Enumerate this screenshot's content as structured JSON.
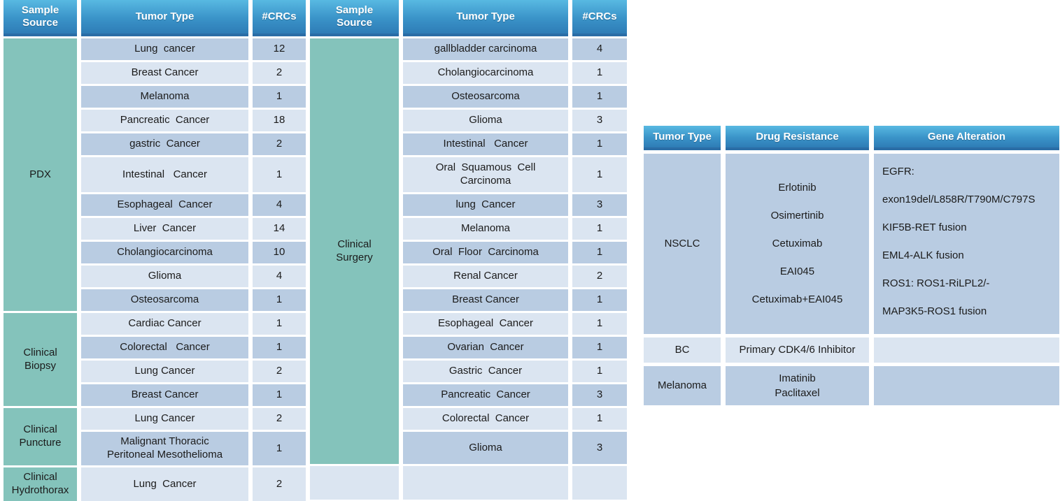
{
  "palette": {
    "header_gradient_top": "#58b9e2",
    "header_gradient_bottom": "#2e7cb6",
    "header_edge": "#2a6da6",
    "group_teal": "#84c3bb",
    "row_dark": "#b9cce2",
    "row_light": "#dbe5f1",
    "text": "#1b1b1b",
    "header_text": "#ffffff"
  },
  "left_table": {
    "header": {
      "source": "Sample Source",
      "tumor": "Tumor Type",
      "crcs": "#CRCs"
    },
    "groups": [
      {
        "label": "PDX",
        "span": 11
      },
      {
        "label": "Clinical\nBiopsy",
        "span": 4
      },
      {
        "label": "Clinical\nPuncture",
        "span": 2
      },
      {
        "label": "Clinical\nHydrothorax",
        "span": 1
      }
    ],
    "rows": [
      {
        "tumor": "Lung  cancer",
        "crcs": "12"
      },
      {
        "tumor": "Breast Cancer",
        "crcs": "2"
      },
      {
        "tumor": "Melanoma",
        "crcs": "1"
      },
      {
        "tumor": "Pancreatic  Cancer",
        "crcs": "18"
      },
      {
        "tumor": "gastric  Cancer",
        "crcs": "2"
      },
      {
        "tumor": "Intestinal   Cancer",
        "crcs": "1"
      },
      {
        "tumor": "Esophageal  Cancer",
        "crcs": "4"
      },
      {
        "tumor": "Liver  Cancer",
        "crcs": "14"
      },
      {
        "tumor": "Cholangiocarcinoma",
        "crcs": "10"
      },
      {
        "tumor": "Glioma",
        "crcs": "4"
      },
      {
        "tumor": "Osteosarcoma",
        "crcs": "1"
      },
      {
        "tumor": "Cardiac Cancer",
        "crcs": "1"
      },
      {
        "tumor": "Colorectal   Cancer",
        "crcs": "1"
      },
      {
        "tumor": "Lung Cancer",
        "crcs": "2"
      },
      {
        "tumor": "Breast Cancer",
        "crcs": "1"
      },
      {
        "tumor": "Lung Cancer",
        "crcs": "2"
      },
      {
        "tumor": "Malignant Thoracic\nPeritoneal Mesothelioma",
        "crcs": "1"
      },
      {
        "tumor": "Lung  Cancer",
        "crcs": "2"
      }
    ]
  },
  "middle_table": {
    "header": {
      "source": "Sample Source",
      "tumor": "Tumor Type",
      "crcs": "#CRCs"
    },
    "groups": [
      {
        "label": "Clinical\nSurgery",
        "span": 17
      }
    ],
    "rows": [
      {
        "tumor": "gallbladder carcinoma",
        "crcs": "4"
      },
      {
        "tumor": "Cholangiocarcinoma",
        "crcs": "1"
      },
      {
        "tumor": "Osteosarcoma",
        "crcs": "1"
      },
      {
        "tumor": "Glioma",
        "crcs": "3"
      },
      {
        "tumor": "Intestinal   Cancer",
        "crcs": "1"
      },
      {
        "tumor": "Oral  Squamous  Cell\nCarcinoma",
        "crcs": "1"
      },
      {
        "tumor": "lung  Cancer",
        "crcs": "3"
      },
      {
        "tumor": "Melanoma",
        "crcs": "1"
      },
      {
        "tumor": "Oral  Floor  Carcinoma",
        "crcs": "1"
      },
      {
        "tumor": "Renal Cancer",
        "crcs": "2"
      },
      {
        "tumor": "Breast Cancer",
        "crcs": "1"
      },
      {
        "tumor": "Esophageal  Cancer",
        "crcs": "1"
      },
      {
        "tumor": "Ovarian  Cancer",
        "crcs": "1"
      },
      {
        "tumor": "Gastric  Cancer",
        "crcs": "1"
      },
      {
        "tumor": "Pancreatic  Cancer",
        "crcs": "3"
      },
      {
        "tumor": "Colorectal  Cancer",
        "crcs": "1"
      },
      {
        "tumor": "Glioma",
        "crcs": "3"
      }
    ]
  },
  "right_table": {
    "header": {
      "tumor": "Tumor Type",
      "drug": "Drug Resistance",
      "gene": "Gene Alteration"
    },
    "rows": [
      {
        "tumor": "NSCLC",
        "drugs": [
          "Erlotinib",
          "Osimertinib",
          "Cetuximab",
          "EAI045",
          "Cetuximab+EAI045"
        ],
        "genes": [
          "EGFR:",
          "exon19del/L858R/T790M/C797S",
          "KIF5B-RET fusion",
          "EML4-ALK fusion",
          "ROS1: ROS1-RiLPL2/-",
          "MAP3K5-ROS1 fusion"
        ]
      },
      {
        "tumor": "BC",
        "drugs": [
          "Primary CDK4/6 Inhibitor"
        ],
        "genes": []
      },
      {
        "tumor": "Melanoma",
        "drugs": [
          "Imatinib",
          "Paclitaxel"
        ],
        "genes": []
      }
    ]
  }
}
